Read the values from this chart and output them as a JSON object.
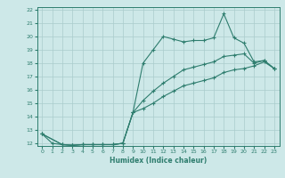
{
  "xlabel": "Humidex (Indice chaleur)",
  "bg_color": "#cde8e8",
  "line_color": "#2e7d6e",
  "grid_color": "#aacccc",
  "xlim": [
    -0.5,
    23.5
  ],
  "ylim": [
    11.8,
    22.2
  ],
  "xticks": [
    0,
    1,
    2,
    3,
    4,
    5,
    6,
    7,
    8,
    9,
    10,
    11,
    12,
    13,
    14,
    15,
    16,
    17,
    18,
    19,
    20,
    21,
    22,
    23
  ],
  "yticks": [
    12,
    13,
    14,
    15,
    16,
    17,
    18,
    19,
    20,
    21,
    22
  ],
  "line1_x": [
    0,
    1,
    2,
    3,
    4,
    5,
    6,
    7,
    8,
    9,
    10,
    11,
    12,
    13,
    14,
    15,
    16,
    17,
    18,
    19,
    20,
    21,
    22,
    23
  ],
  "line1_y": [
    12.7,
    12.0,
    11.9,
    11.85,
    11.9,
    11.9,
    11.9,
    11.9,
    12.0,
    14.3,
    18.0,
    19.0,
    20.0,
    19.8,
    19.6,
    19.7,
    19.7,
    19.9,
    21.7,
    19.9,
    19.5,
    18.1,
    18.2,
    17.6
  ],
  "line2_x": [
    0,
    2,
    3,
    4,
    5,
    6,
    7,
    8,
    9,
    10,
    11,
    12,
    13,
    14,
    15,
    16,
    17,
    18,
    19,
    20,
    21,
    22,
    23
  ],
  "line2_y": [
    12.7,
    11.9,
    11.85,
    11.9,
    11.9,
    11.9,
    11.9,
    12.0,
    14.3,
    15.2,
    15.9,
    16.5,
    17.0,
    17.5,
    17.7,
    17.9,
    18.1,
    18.5,
    18.6,
    18.7,
    18.0,
    18.2,
    17.6
  ],
  "line3_x": [
    0,
    2,
    3,
    4,
    5,
    6,
    7,
    8,
    9,
    10,
    11,
    12,
    13,
    14,
    15,
    16,
    17,
    18,
    19,
    20,
    21,
    22,
    23
  ],
  "line3_y": [
    12.7,
    11.9,
    11.85,
    11.9,
    11.9,
    11.9,
    11.9,
    12.0,
    14.3,
    14.6,
    15.0,
    15.5,
    15.9,
    16.3,
    16.5,
    16.7,
    16.9,
    17.3,
    17.5,
    17.6,
    17.8,
    18.1,
    17.6
  ]
}
